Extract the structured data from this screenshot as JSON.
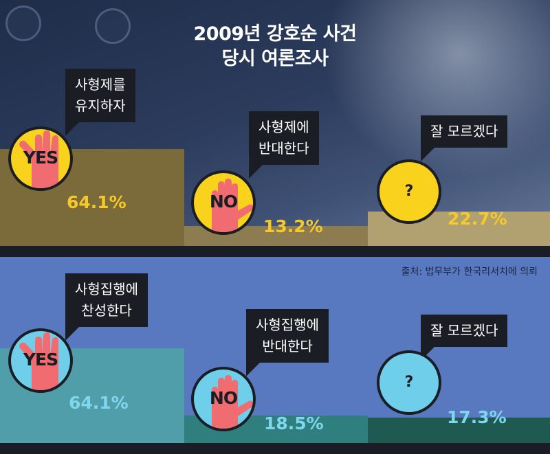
{
  "title_line1": "2009년 강호순 사건",
  "title_line2": "당시 여론조사",
  "source": "출처: 법무부가 한국리서치에 의뢰",
  "colors": {
    "top_bars": [
      "#7b6b3b",
      "#8d7c50",
      "#b1a070"
    ],
    "top_text": "#f6c928",
    "top_circle": "#f8d21c",
    "bottom_bars": [
      "#4f9eaa",
      "#2f7f7e",
      "#1e5a52"
    ],
    "bottom_text": "#7fd7ee",
    "bottom_circle": "#6fcfea",
    "hand": "#f06c70"
  },
  "survey_top": {
    "items": [
      {
        "bubble_line1": "사형제를",
        "bubble_line2": "유지하자",
        "icon_text": "YES",
        "percent_label": "64.1%"
      },
      {
        "bubble_line1": "사형제에",
        "bubble_line2": "반대한다",
        "icon_text": "NO",
        "percent_label": "13.2%"
      },
      {
        "bubble_line1": "잘 모르겠다",
        "bubble_line2": "",
        "icon_text": "?",
        "percent_label": "22.7%"
      }
    ]
  },
  "survey_bottom": {
    "items": [
      {
        "bubble_line1": "사형집행에",
        "bubble_line2": "찬성한다",
        "icon_text": "YES",
        "percent_label": "64.1%"
      },
      {
        "bubble_line1": "사형집행에",
        "bubble_line2": "반대한다",
        "icon_text": "NO",
        "percent_label": "18.5%"
      },
      {
        "bubble_line1": "잘 모르겠다",
        "bubble_line2": "",
        "icon_text": "?",
        "percent_label": "17.3%"
      }
    ]
  },
  "chart_data": [
    {
      "type": "bar",
      "title": "2009년 강호순 사건 당시 여론조사",
      "categories": [
        "사형제를 유지하자",
        "사형제에 반대한다",
        "잘 모르겠다"
      ],
      "values": [
        64.1,
        13.2,
        22.7
      ],
      "unit": "%",
      "ylim": [
        0,
        100
      ]
    },
    {
      "type": "bar",
      "title": "2009년 강호순 사건 당시 여론조사",
      "categories": [
        "사형집행에 찬성한다",
        "사형집행에 반대한다",
        "잘 모르겠다"
      ],
      "values": [
        64.1,
        18.5,
        17.3
      ],
      "unit": "%",
      "ylim": [
        0,
        100
      ]
    }
  ]
}
